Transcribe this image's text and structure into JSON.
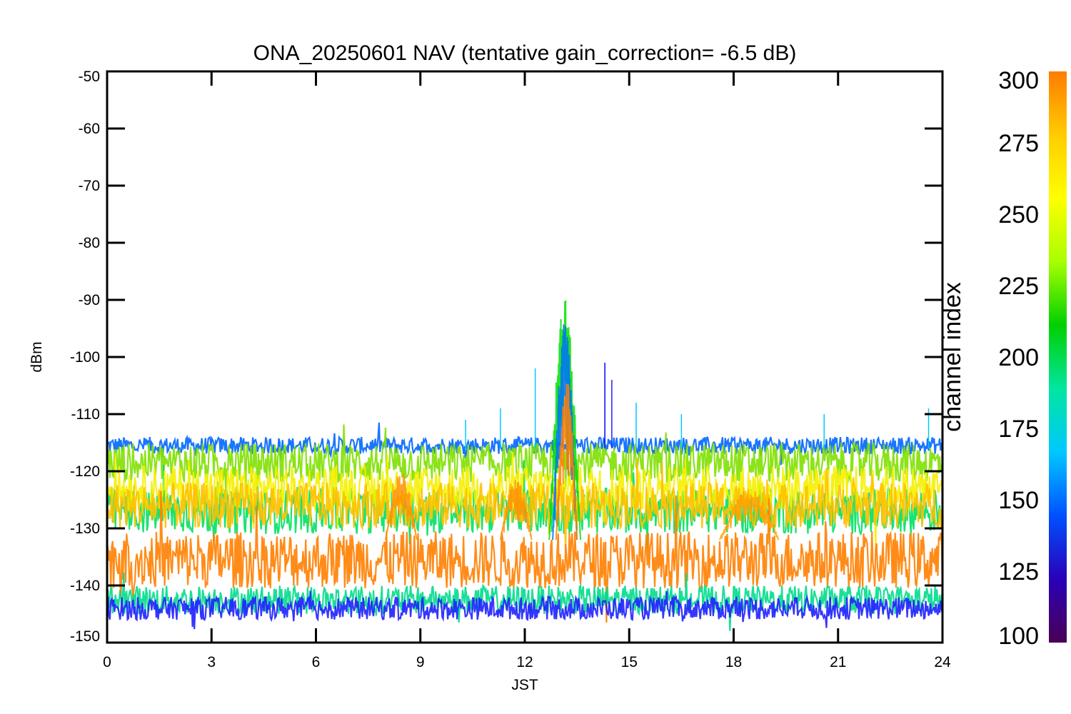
{
  "chart_data": {
    "type": "line",
    "title": "ONA_20250601 NAV (tentative gain_correction= -6.5 dB)",
    "xlabel": "JST",
    "ylabel": "dBm",
    "xlim": [
      0,
      24
    ],
    "ylim": [
      -150,
      -50
    ],
    "xticks": [
      0,
      3,
      6,
      9,
      12,
      15,
      18,
      21,
      24
    ],
    "yticks": [
      -50,
      -60,
      -70,
      -80,
      -90,
      -100,
      -110,
      -120,
      -130,
      -140,
      -150
    ],
    "grid": false,
    "colorbar": {
      "label": "channel index",
      "range": [
        100,
        300
      ],
      "ticks": [
        100,
        125,
        150,
        175,
        200,
        225,
        250,
        275,
        300
      ],
      "colors": [
        "#4b0055",
        "#2a00b8",
        "#0050ff",
        "#00c8ff",
        "#00e6a0",
        "#00d000",
        "#a8ff00",
        "#ffff00",
        "#ffcc00",
        "#ff7c00"
      ]
    },
    "bands": [
      {
        "channel": 150,
        "color": "#0066ff",
        "level": -115.5,
        "spread": 1.5
      },
      {
        "channel": 250,
        "color": "#80e000",
        "level": -118.5,
        "spread": 3.5
      },
      {
        "channel": 230,
        "color": "#00e060",
        "level": -127,
        "spread": 4
      },
      {
        "channel": 275,
        "color": "#f5f000",
        "level": -123,
        "spread": 4
      },
      {
        "channel": 290,
        "color": "#ffc000",
        "level": -126,
        "spread": 4
      },
      {
        "channel": 300,
        "color": "#ff8000",
        "level": -135.5,
        "spread": 5
      },
      {
        "channel": 200,
        "color": "#00dc8c",
        "level": -142.5,
        "spread": 2.5
      },
      {
        "channel": 140,
        "color": "#2020ff",
        "level": -144,
        "spread": 2
      }
    ],
    "events": [
      {
        "jst_start": 12.7,
        "jst_end": 13.6,
        "peak_dbm": -88,
        "color": "#00e000"
      },
      {
        "jst_start": 12.8,
        "jst_end": 13.5,
        "peak_dbm": -93,
        "color": "#0070ff"
      },
      {
        "jst_start": 12.9,
        "jst_end": 13.5,
        "peak_dbm": -102,
        "color": "#ff8000"
      },
      {
        "jst_start": 8.0,
        "jst_end": 8.9,
        "peak_dbm": -120,
        "color": "#ff9000"
      },
      {
        "jst_start": 11.3,
        "jst_end": 12.2,
        "peak_dbm": -121,
        "color": "#ff9000"
      },
      {
        "jst_start": 17.6,
        "jst_end": 19.3,
        "peak_dbm": -123,
        "color": "#ffa000"
      }
    ],
    "spikes": [
      {
        "jst": 10.3,
        "dbm": -111,
        "color": "#00c8ff"
      },
      {
        "jst": 11.3,
        "dbm": -109,
        "color": "#00c8ff"
      },
      {
        "jst": 12.3,
        "dbm": -102,
        "color": "#00c8ff"
      },
      {
        "jst": 14.3,
        "dbm": -101,
        "color": "#0000ff"
      },
      {
        "jst": 14.5,
        "dbm": -104,
        "color": "#2020ff"
      },
      {
        "jst": 15.2,
        "dbm": -108,
        "color": "#00c8ff"
      },
      {
        "jst": 16.5,
        "dbm": -110,
        "color": "#00c8ff"
      },
      {
        "jst": 20.6,
        "dbm": -110,
        "color": "#00c8ff"
      },
      {
        "jst": 23.6,
        "dbm": -109,
        "color": "#00c8ff"
      }
    ]
  }
}
